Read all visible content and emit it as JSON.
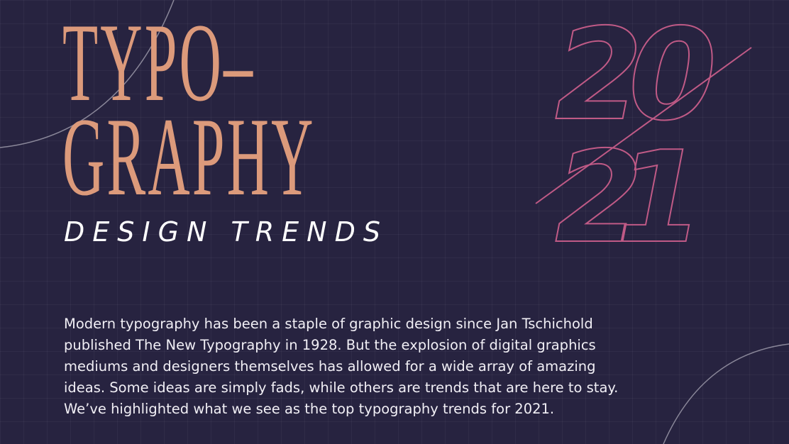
{
  "title": {
    "line1": "TYPO–",
    "line2": "GRAPHY",
    "subtitle": "DESIGN TRENDS"
  },
  "year": {
    "top": "20",
    "bottom": "21"
  },
  "intro": {
    "lines": [
      "Modern typography has been a staple of graphic design since Jan Tschichold",
      "published The New Typography in 1928. But the explosion of digital graphics",
      "mediums and designers themselves has allowed for a wide array of amazing",
      "ideas. Some ideas are simply fads, while others are trends that are here to stay.",
      "We’ve highlighted what we see as the top typography trends for 2021."
    ]
  },
  "colors": {
    "background": "#272340",
    "title": "#dc9a7b",
    "year_outline": "#c05a86",
    "text": "#ffffff"
  }
}
